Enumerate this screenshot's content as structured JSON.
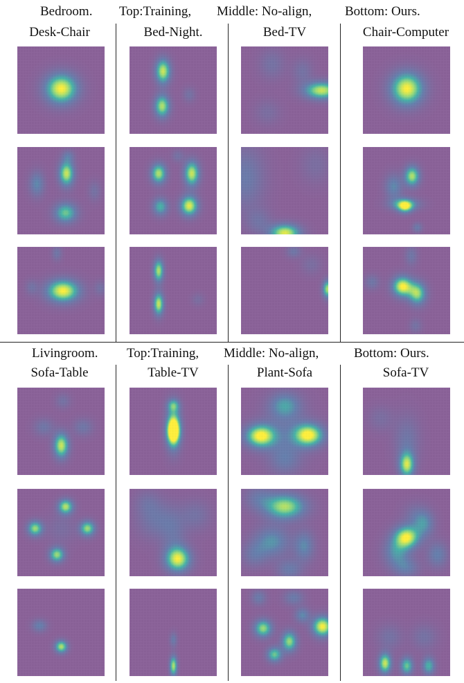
{
  "sections": [
    {
      "caption": [
        "Bedroom.",
        "Top:Training,",
        "Middle: No-align,",
        "Bottom: Ours."
      ],
      "columns": [
        {
          "title": "Desk-Chair",
          "panels": [
            {
              "row": "Top",
              "blobs": [
                [
                  0.5,
                  0.48,
                  0.13,
                  0.12,
                  1.0
                ]
              ]
            },
            {
              "row": "Middle",
              "blobs": [
                [
                  0.56,
                  0.3,
                  0.06,
                  0.1,
                  0.9
                ],
                [
                  0.55,
                  0.75,
                  0.09,
                  0.08,
                  0.7
                ],
                [
                  0.22,
                  0.42,
                  0.06,
                  0.1,
                  0.4
                ],
                [
                  0.58,
                  0.1,
                  0.05,
                  0.05,
                  0.25
                ],
                [
                  0.88,
                  0.5,
                  0.05,
                  0.08,
                  0.2
                ]
              ]
            },
            {
              "row": "Bottom",
              "blobs": [
                [
                  0.52,
                  0.5,
                  0.13,
                  0.09,
                  1.0
                ],
                [
                  0.45,
                  0.07,
                  0.04,
                  0.06,
                  0.25
                ],
                [
                  0.16,
                  0.46,
                  0.05,
                  0.06,
                  0.2
                ],
                [
                  0.95,
                  0.47,
                  0.05,
                  0.06,
                  0.2
                ]
              ]
            }
          ]
        },
        {
          "title": "Bed-Night.",
          "panels": [
            {
              "row": "Top",
              "blobs": [
                [
                  0.38,
                  0.28,
                  0.06,
                  0.1,
                  0.9
                ],
                [
                  0.37,
                  0.68,
                  0.06,
                  0.09,
                  0.85
                ],
                [
                  0.68,
                  0.55,
                  0.05,
                  0.06,
                  0.2
                ]
              ]
            },
            {
              "row": "Middle",
              "blobs": [
                [
                  0.33,
                  0.3,
                  0.06,
                  0.08,
                  0.85
                ],
                [
                  0.71,
                  0.3,
                  0.06,
                  0.1,
                  0.9
                ],
                [
                  0.35,
                  0.68,
                  0.06,
                  0.07,
                  0.6
                ],
                [
                  0.68,
                  0.67,
                  0.07,
                  0.08,
                  0.95
                ],
                [
                  0.55,
                  0.1,
                  0.05,
                  0.05,
                  0.2
                ]
              ]
            },
            {
              "row": "Bottom",
              "blobs": [
                [
                  0.33,
                  0.27,
                  0.04,
                  0.09,
                  0.85
                ],
                [
                  0.33,
                  0.65,
                  0.04,
                  0.09,
                  0.9
                ],
                [
                  0.78,
                  0.6,
                  0.05,
                  0.05,
                  0.15
                ]
              ]
            }
          ]
        },
        {
          "title": "Bed-TV",
          "panels": [
            {
              "row": "Top",
              "blobs": [
                [
                  0.92,
                  0.5,
                  0.14,
                  0.07,
                  0.9
                ],
                [
                  0.7,
                  0.28,
                  0.08,
                  0.1,
                  0.2
                ],
                [
                  0.35,
                  0.2,
                  0.1,
                  0.12,
                  0.2
                ],
                [
                  0.3,
                  0.75,
                  0.1,
                  0.1,
                  0.15
                ]
              ]
            },
            {
              "row": "Middle",
              "blobs": [
                [
                  0.5,
                  0.98,
                  0.12,
                  0.07,
                  0.95
                ],
                [
                  0.05,
                  0.35,
                  0.15,
                  0.25,
                  0.3
                ],
                [
                  0.85,
                  0.2,
                  0.12,
                  0.15,
                  0.15
                ],
                [
                  0.2,
                  0.85,
                  0.1,
                  0.1,
                  0.2
                ]
              ]
            },
            {
              "row": "Bottom",
              "blobs": [
                [
                  0.99,
                  0.48,
                  0.04,
                  0.07,
                  0.85
                ],
                [
                  0.6,
                  0.05,
                  0.06,
                  0.05,
                  0.25
                ],
                [
                  0.8,
                  0.2,
                  0.08,
                  0.08,
                  0.15
                ]
              ]
            }
          ]
        },
        {
          "title": "Chair-Computer",
          "panels": [
            {
              "row": "Top",
              "blobs": [
                [
                  0.5,
                  0.48,
                  0.13,
                  0.13,
                  1.0
                ]
              ]
            },
            {
              "row": "Middle",
              "blobs": [
                [
                  0.56,
                  0.33,
                  0.06,
                  0.08,
                  0.85
                ],
                [
                  0.47,
                  0.65,
                  0.12,
                  0.05,
                  0.55
                ],
                [
                  0.35,
                  0.45,
                  0.07,
                  0.1,
                  0.4
                ],
                [
                  0.48,
                  0.68,
                  0.06,
                  0.05,
                  0.7
                ],
                [
                  0.62,
                  0.92,
                  0.04,
                  0.04,
                  0.3
                ]
              ]
            },
            {
              "row": "Bottom",
              "blobs": [
                [
                  0.45,
                  0.45,
                  0.08,
                  0.08,
                  1.0
                ],
                [
                  0.62,
                  0.53,
                  0.07,
                  0.09,
                  0.8
                ],
                [
                  0.55,
                  0.1,
                  0.05,
                  0.08,
                  0.25
                ],
                [
                  0.1,
                  0.4,
                  0.06,
                  0.06,
                  0.25
                ],
                [
                  0.6,
                  0.9,
                  0.05,
                  0.06,
                  0.2
                ]
              ]
            }
          ]
        }
      ]
    },
    {
      "caption": [
        "Livingroom.",
        "Top:Training,",
        "Middle: No-align,",
        "Bottom: Ours."
      ],
      "columns": [
        {
          "title": "Sofa-Table",
          "panels": [
            {
              "row": "Top",
              "blobs": [
                [
                  0.5,
                  0.66,
                  0.06,
                  0.1,
                  0.9
                ],
                [
                  0.3,
                  0.45,
                  0.08,
                  0.07,
                  0.25
                ],
                [
                  0.75,
                  0.45,
                  0.08,
                  0.07,
                  0.25
                ],
                [
                  0.52,
                  0.15,
                  0.06,
                  0.06,
                  0.2
                ]
              ]
            },
            {
              "row": "Middle",
              "blobs": [
                [
                  0.55,
                  0.2,
                  0.06,
                  0.06,
                  0.85
                ],
                [
                  0.2,
                  0.45,
                  0.06,
                  0.06,
                  0.8
                ],
                [
                  0.8,
                  0.45,
                  0.06,
                  0.06,
                  0.8
                ],
                [
                  0.45,
                  0.75,
                  0.06,
                  0.06,
                  0.8
                ],
                [
                  0.5,
                  0.45,
                  0.12,
                  0.12,
                  0.15
                ]
              ]
            },
            {
              "row": "Bottom",
              "blobs": [
                [
                  0.5,
                  0.66,
                  0.05,
                  0.05,
                  0.85
                ],
                [
                  0.25,
                  0.42,
                  0.06,
                  0.05,
                  0.35
                ]
              ]
            }
          ]
        },
        {
          "title": "Table-TV",
          "panels": [
            {
              "row": "Top",
              "blobs": [
                [
                  0.5,
                  0.45,
                  0.06,
                  0.18,
                  0.7
                ],
                [
                  0.5,
                  0.5,
                  0.05,
                  0.1,
                  0.95
                ],
                [
                  0.5,
                  0.2,
                  0.05,
                  0.05,
                  0.5
                ]
              ]
            },
            {
              "row": "Middle",
              "blobs": [
                [
                  0.55,
                  0.8,
                  0.1,
                  0.1,
                  0.95
                ],
                [
                  0.3,
                  0.35,
                  0.15,
                  0.15,
                  0.25
                ],
                [
                  0.75,
                  0.3,
                  0.12,
                  0.12,
                  0.2
                ],
                [
                  0.2,
                  0.15,
                  0.1,
                  0.1,
                  0.15
                ],
                [
                  0.5,
                  0.5,
                  0.1,
                  0.18,
                  0.2
                ]
              ]
            },
            {
              "row": "Bottom",
              "blobs": [
                [
                  0.5,
                  0.88,
                  0.03,
                  0.08,
                  0.85
                ],
                [
                  0.5,
                  0.58,
                  0.03,
                  0.06,
                  0.3
                ]
              ]
            }
          ]
        },
        {
          "title": "Plant-Sofa",
          "panels": [
            {
              "row": "Top",
              "blobs": [
                [
                  0.22,
                  0.55,
                  0.12,
                  0.09,
                  1.0
                ],
                [
                  0.77,
                  0.54,
                  0.12,
                  0.09,
                  1.0
                ],
                [
                  0.5,
                  0.2,
                  0.12,
                  0.1,
                  0.45
                ],
                [
                  0.5,
                  0.82,
                  0.12,
                  0.12,
                  0.25
                ],
                [
                  0.5,
                  0.5,
                  0.2,
                  0.25,
                  0.2
                ]
              ]
            },
            {
              "row": "Middle",
              "blobs": [
                [
                  0.5,
                  0.2,
                  0.16,
                  0.1,
                  0.85
                ],
                [
                  0.35,
                  0.6,
                  0.14,
                  0.12,
                  0.45
                ],
                [
                  0.72,
                  0.65,
                  0.08,
                  0.12,
                  0.4
                ],
                [
                  0.55,
                  0.92,
                  0.1,
                  0.08,
                  0.3
                ],
                [
                  0.2,
                  0.1,
                  0.12,
                  0.1,
                  0.25
                ],
                [
                  0.15,
                  0.75,
                  0.1,
                  0.1,
                  0.25
                ]
              ]
            },
            {
              "row": "Bottom",
              "blobs": [
                [
                  0.93,
                  0.43,
                  0.08,
                  0.08,
                  1.0
                ],
                [
                  0.25,
                  0.45,
                  0.07,
                  0.07,
                  0.8
                ],
                [
                  0.55,
                  0.6,
                  0.06,
                  0.08,
                  0.8
                ],
                [
                  0.38,
                  0.75,
                  0.06,
                  0.06,
                  0.7
                ],
                [
                  0.7,
                  0.3,
                  0.06,
                  0.06,
                  0.4
                ],
                [
                  0.6,
                  0.1,
                  0.08,
                  0.06,
                  0.3
                ],
                [
                  0.2,
                  0.1,
                  0.06,
                  0.06,
                  0.3
                ]
              ]
            }
          ]
        },
        {
          "title": "Sofa-TV",
          "panels": [
            {
              "row": "Top",
              "blobs": [
                [
                  0.5,
                  0.88,
                  0.06,
                  0.1,
                  0.85
                ],
                [
                  0.5,
                  0.6,
                  0.1,
                  0.2,
                  0.25
                ],
                [
                  0.2,
                  0.35,
                  0.1,
                  0.1,
                  0.15
                ]
              ]
            },
            {
              "row": "Middle",
              "blobs": [
                [
                  0.5,
                  0.55,
                  0.1,
                  0.09,
                  0.95
                ],
                [
                  0.38,
                  0.72,
                  0.1,
                  0.12,
                  0.45
                ],
                [
                  0.7,
                  0.4,
                  0.08,
                  0.1,
                  0.4
                ],
                [
                  0.85,
                  0.75,
                  0.08,
                  0.1,
                  0.35
                ],
                [
                  0.5,
                  0.9,
                  0.1,
                  0.08,
                  0.3
                ],
                [
                  0.6,
                  0.3,
                  0.1,
                  0.1,
                  0.2
                ]
              ]
            },
            {
              "row": "Bottom",
              "blobs": [
                [
                  0.25,
                  0.85,
                  0.05,
                  0.08,
                  0.9
                ],
                [
                  0.5,
                  0.88,
                  0.05,
                  0.07,
                  0.7
                ],
                [
                  0.75,
                  0.88,
                  0.05,
                  0.07,
                  0.6
                ],
                [
                  0.3,
                  0.55,
                  0.1,
                  0.1,
                  0.2
                ],
                [
                  0.7,
                  0.55,
                  0.1,
                  0.1,
                  0.2
                ]
              ]
            }
          ]
        }
      ]
    }
  ]
}
